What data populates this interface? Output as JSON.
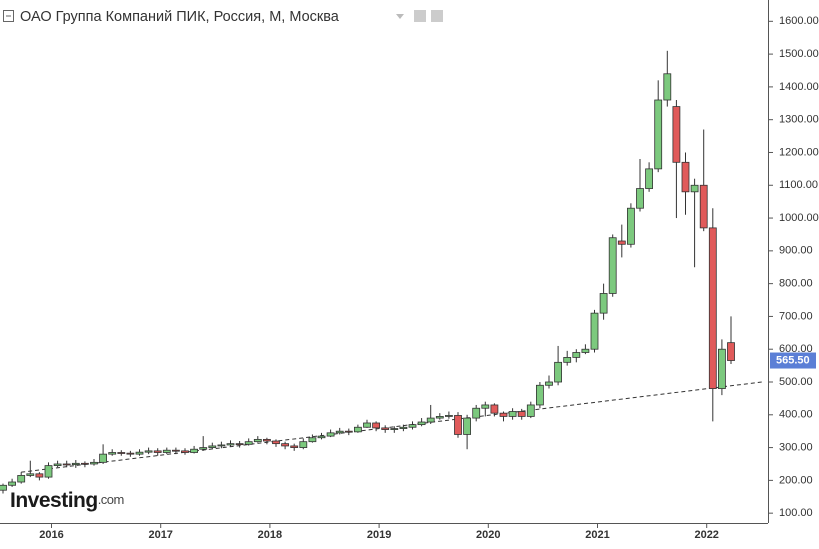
{
  "chart_data": {
    "type": "candlestick",
    "title": "ОАО Группа Компаний ПИК, Россия, М, Москва",
    "watermark": "Investing",
    "watermark_suffix": ".com",
    "categories": [
      null,
      null,
      null,
      null,
      null,
      "2016",
      null,
      null,
      null,
      null,
      null,
      null,
      null,
      null,
      null,
      null,
      null,
      "2017",
      null,
      null,
      null,
      null,
      null,
      null,
      null,
      null,
      null,
      null,
      null,
      "2018",
      null,
      null,
      null,
      null,
      null,
      null,
      null,
      null,
      null,
      null,
      null,
      "2019",
      null,
      null,
      null,
      null,
      null,
      null,
      null,
      null,
      null,
      null,
      null,
      "2020",
      null,
      null,
      null,
      null,
      null,
      null,
      null,
      null,
      null,
      null,
      null,
      "2021",
      null,
      null,
      null,
      null,
      null,
      null,
      null,
      null,
      null,
      null,
      null,
      "2022",
      null,
      null,
      null
    ],
    "open": [
      170,
      185,
      195,
      215,
      220,
      210,
      245,
      250,
      248,
      252,
      250,
      255,
      280,
      285,
      283,
      280,
      286,
      290,
      285,
      292,
      290,
      285,
      295,
      300,
      305,
      308,
      312,
      310,
      318,
      325,
      320,
      312,
      305,
      300,
      318,
      330,
      335,
      345,
      350,
      348,
      362,
      375,
      360,
      355,
      358,
      362,
      370,
      378,
      390,
      395,
      398,
      340,
      390,
      420,
      430,
      405,
      395,
      410,
      395,
      430,
      490,
      500,
      560,
      575,
      590,
      600,
      710,
      770,
      930,
      920,
      1030,
      1090,
      1150,
      1360,
      1340,
      1170,
      1080,
      1100,
      970,
      480,
      620
    ],
    "high": [
      190,
      205,
      225,
      260,
      225,
      255,
      260,
      260,
      262,
      258,
      265,
      310,
      295,
      292,
      290,
      295,
      300,
      298,
      300,
      300,
      298,
      305,
      335,
      315,
      318,
      322,
      320,
      328,
      335,
      330,
      325,
      318,
      312,
      328,
      340,
      345,
      355,
      360,
      358,
      370,
      385,
      380,
      368,
      365,
      370,
      380,
      390,
      430,
      405,
      410,
      408,
      400,
      430,
      440,
      435,
      410,
      420,
      418,
      440,
      500,
      520,
      610,
      595,
      600,
      615,
      720,
      800,
      950,
      980,
      1045,
      1180,
      1170,
      1420,
      1510,
      1360,
      1200,
      1120,
      1270,
      1030,
      630,
      700
    ],
    "low": [
      160,
      180,
      190,
      210,
      200,
      205,
      240,
      240,
      238,
      240,
      245,
      250,
      275,
      275,
      272,
      275,
      280,
      275,
      280,
      280,
      278,
      282,
      290,
      295,
      298,
      302,
      300,
      306,
      315,
      310,
      302,
      295,
      290,
      295,
      315,
      325,
      332,
      340,
      338,
      345,
      360,
      350,
      345,
      345,
      350,
      355,
      365,
      372,
      385,
      388,
      330,
      295,
      380,
      395,
      395,
      380,
      385,
      385,
      390,
      420,
      480,
      490,
      550,
      560,
      585,
      590,
      690,
      760,
      880,
      910,
      1020,
      1080,
      1140,
      1340,
      1000,
      1010,
      850,
      960,
      380,
      460,
      555
    ],
    "close": [
      185,
      195,
      215,
      220,
      210,
      245,
      250,
      248,
      252,
      250,
      255,
      280,
      285,
      283,
      280,
      286,
      290,
      285,
      292,
      290,
      285,
      295,
      300,
      305,
      308,
      312,
      310,
      318,
      325,
      320,
      312,
      305,
      300,
      318,
      330,
      335,
      345,
      350,
      348,
      362,
      375,
      360,
      355,
      358,
      362,
      370,
      378,
      390,
      395,
      398,
      340,
      390,
      420,
      430,
      405,
      395,
      410,
      395,
      430,
      490,
      500,
      560,
      575,
      590,
      600,
      710,
      770,
      940,
      920,
      1030,
      1090,
      1150,
      1360,
      1440,
      1170,
      1080,
      1100,
      970,
      480,
      600,
      565.5
    ],
    "up_color": "#7cc97e",
    "down_color": "#e05a5a",
    "trendline": [
      225,
      500
    ],
    "last_price": {
      "value": 565.5,
      "label": "565.50"
    },
    "ylim": [
      70,
      1665
    ],
    "yticks": [
      {
        "value": 100,
        "label": "100.00"
      },
      {
        "value": 200,
        "label": "200.00"
      },
      {
        "value": 300,
        "label": "300.00"
      },
      {
        "value": 400,
        "label": "400.00"
      },
      {
        "value": 500,
        "label": "500.00"
      },
      {
        "value": 600,
        "label": "600.00"
      },
      {
        "value": 700,
        "label": "700.00"
      },
      {
        "value": 800,
        "label": "800.00"
      },
      {
        "value": 900,
        "label": "900.00"
      },
      {
        "value": 1000,
        "label": "1000.00"
      },
      {
        "value": 1100,
        "label": "1100.00"
      },
      {
        "value": 1200,
        "label": "1200.00"
      },
      {
        "value": 1300,
        "label": "1300.00"
      },
      {
        "value": 1400,
        "label": "1400.00"
      },
      {
        "value": 1500,
        "label": "1500.00"
      },
      {
        "value": 1600,
        "label": "1600.00"
      }
    ]
  }
}
